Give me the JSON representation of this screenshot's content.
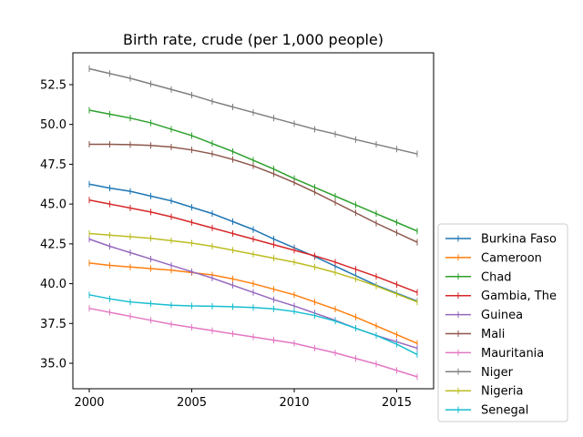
{
  "chart_data": {
    "type": "line",
    "title": "Birth rate, crude (per 1,000 people)",
    "xlabel": "",
    "ylabel": "",
    "x": [
      2000,
      2001,
      2002,
      2003,
      2004,
      2005,
      2006,
      2007,
      2008,
      2009,
      2010,
      2011,
      2012,
      2013,
      2014,
      2015,
      2016
    ],
    "xlim": [
      1999.2,
      2016.8
    ],
    "ylim": [
      33.4,
      54.5
    ],
    "xticks": [
      2000,
      2005,
      2010,
      2015
    ],
    "yticks": [
      35.0,
      37.5,
      40.0,
      42.5,
      45.0,
      47.5,
      50.0,
      52.5
    ],
    "xtick_labels": [
      "2000",
      "2005",
      "2010",
      "2015"
    ],
    "ytick_labels": [
      "35.0",
      "37.5",
      "40.0",
      "42.5",
      "45.0",
      "47.5",
      "50.0",
      "52.5"
    ],
    "grid": false,
    "legend_position": "outside-right-bottom",
    "series": [
      {
        "name": "Burkina Faso",
        "color": "#1f77b4",
        "values": [
          46.25,
          46.0,
          45.8,
          45.5,
          45.2,
          44.8,
          44.4,
          43.9,
          43.4,
          42.8,
          42.25,
          41.7,
          41.1,
          40.5,
          39.9,
          39.4,
          38.9
        ]
      },
      {
        "name": "Cameroon",
        "color": "#ff7f0e",
        "values": [
          41.3,
          41.15,
          41.05,
          40.95,
          40.85,
          40.7,
          40.55,
          40.3,
          40.0,
          39.65,
          39.3,
          38.85,
          38.4,
          37.9,
          37.35,
          36.8,
          36.25
        ]
      },
      {
        "name": "Chad",
        "color": "#2ca02c",
        "values": [
          50.9,
          50.65,
          50.4,
          50.1,
          49.7,
          49.3,
          48.8,
          48.3,
          47.75,
          47.2,
          46.6,
          46.05,
          45.5,
          44.95,
          44.4,
          43.85,
          43.3
        ]
      },
      {
        "name": "Gambia, The",
        "color": "#d62728",
        "values": [
          45.25,
          45.0,
          44.75,
          44.5,
          44.2,
          43.85,
          43.5,
          43.15,
          42.8,
          42.45,
          42.1,
          41.75,
          41.35,
          40.9,
          40.45,
          39.95,
          39.45
        ]
      },
      {
        "name": "Guinea",
        "color": "#9467bd",
        "values": [
          42.8,
          42.35,
          41.95,
          41.55,
          41.15,
          40.75,
          40.35,
          39.9,
          39.45,
          39.0,
          38.6,
          38.15,
          37.7,
          37.2,
          36.75,
          36.35,
          35.95
        ]
      },
      {
        "name": "Mali",
        "color": "#8c564b",
        "values": [
          48.75,
          48.75,
          48.73,
          48.68,
          48.58,
          48.4,
          48.15,
          47.8,
          47.4,
          46.9,
          46.35,
          45.75,
          45.1,
          44.45,
          43.8,
          43.2,
          42.6
        ]
      },
      {
        "name": "Mauritania",
        "color": "#e377c2",
        "values": [
          38.45,
          38.2,
          37.95,
          37.7,
          37.45,
          37.25,
          37.05,
          36.85,
          36.65,
          36.45,
          36.25,
          35.95,
          35.65,
          35.3,
          34.95,
          34.55,
          34.15
        ]
      },
      {
        "name": "Niger",
        "color": "#7f7f7f",
        "values": [
          53.5,
          53.2,
          52.9,
          52.55,
          52.2,
          51.85,
          51.45,
          51.1,
          50.75,
          50.4,
          50.05,
          49.7,
          49.4,
          49.05,
          48.75,
          48.45,
          48.15
        ]
      },
      {
        "name": "Nigeria",
        "color": "#bcbd22",
        "values": [
          43.15,
          43.05,
          42.95,
          42.85,
          42.7,
          42.55,
          42.35,
          42.1,
          41.85,
          41.6,
          41.35,
          41.05,
          40.7,
          40.3,
          39.85,
          39.35,
          38.85
        ]
      },
      {
        "name": "Senegal",
        "color": "#17becf",
        "values": [
          39.3,
          39.05,
          38.85,
          38.75,
          38.65,
          38.6,
          38.58,
          38.55,
          38.5,
          38.42,
          38.25,
          38.0,
          37.65,
          37.2,
          36.75,
          36.2,
          35.55
        ]
      }
    ]
  }
}
